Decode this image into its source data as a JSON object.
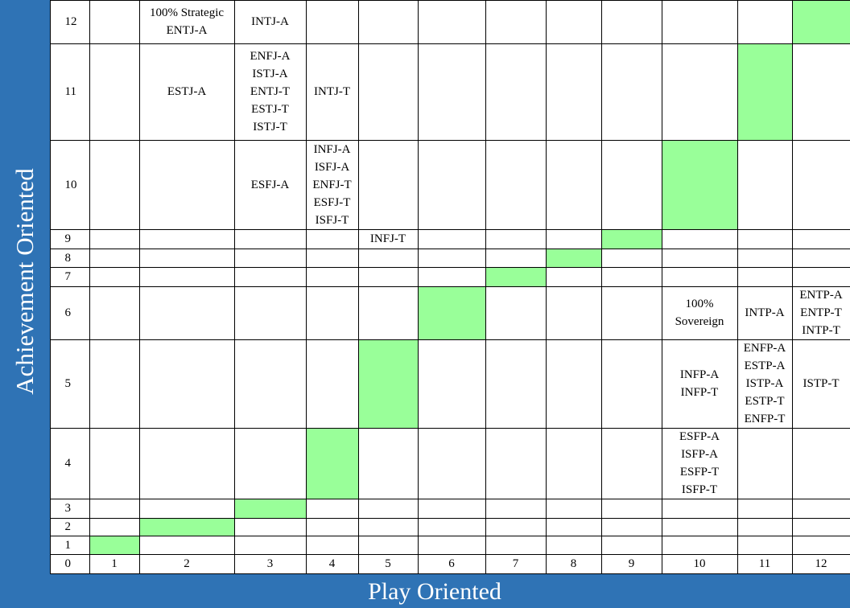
{
  "axis_titles": {
    "y": "Achievement Oriented",
    "x": "Play Oriented"
  },
  "table": {
    "row_labels": [
      "12",
      "11",
      "10",
      "9",
      "8",
      "7",
      "6",
      "5",
      "4",
      "3",
      "2",
      "1"
    ],
    "column_labels": [
      "0",
      "1",
      "2",
      "3",
      "4",
      "5",
      "6",
      "7",
      "8",
      "9",
      "10",
      "11",
      "12"
    ],
    "rows": [
      [
        [],
        [
          "100% Strategic",
          "ENTJ-A"
        ],
        [
          "INTJ-A"
        ],
        [],
        [],
        [],
        [],
        [],
        [],
        [],
        [],
        []
      ],
      [
        [],
        [
          "ESTJ-A"
        ],
        [
          "ENFJ-A",
          "ISTJ-A",
          "ENTJ-T",
          "ESTJ-T",
          "ISTJ-T"
        ],
        [
          "INTJ-T"
        ],
        [],
        [],
        [],
        [],
        [],
        [],
        [],
        []
      ],
      [
        [],
        [],
        [
          "ESFJ-A"
        ],
        [
          "INFJ-A",
          "ISFJ-A",
          "ENFJ-T",
          "ESFJ-T",
          "ISFJ-T"
        ],
        [],
        [],
        [],
        [],
        [],
        [],
        [],
        []
      ],
      [
        [],
        [],
        [],
        [],
        [
          "INFJ-T"
        ],
        [],
        [],
        [],
        [],
        [],
        [],
        []
      ],
      [
        [],
        [],
        [],
        [],
        [],
        [],
        [],
        [],
        [],
        [],
        [],
        []
      ],
      [
        [],
        [],
        [],
        [],
        [],
        [],
        [],
        [],
        [],
        [],
        [],
        []
      ],
      [
        [],
        [],
        [],
        [],
        [],
        [],
        [],
        [],
        [],
        [
          "100%",
          "Sovereign"
        ],
        [
          "INTP-A"
        ],
        [
          "ENTP-A",
          "ENTP-T",
          "INTP-T"
        ]
      ],
      [
        [],
        [],
        [],
        [],
        [],
        [],
        [],
        [],
        [],
        [
          "INFP-A",
          "INFP-T"
        ],
        [
          "ENFP-A",
          "ESTP-A",
          "ISTP-A",
          "ESTP-T",
          "ENFP-T"
        ],
        [
          "ISTP-T"
        ]
      ],
      [
        [],
        [],
        [],
        [],
        [],
        [],
        [],
        [],
        [],
        [
          "ESFP-A",
          "ISFP-A",
          "ESFP-T",
          "ISFP-T"
        ],
        [],
        []
      ],
      [
        [],
        [],
        [],
        [],
        [],
        [],
        [],
        [],
        [],
        [],
        [],
        []
      ],
      [
        [],
        [],
        [],
        [],
        [],
        [],
        [],
        [],
        [],
        [],
        [],
        []
      ],
      [
        [],
        [],
        [],
        [],
        [],
        [],
        [],
        [],
        [],
        [],
        [],
        []
      ]
    ],
    "highlight_color": "#99ff99"
  }
}
